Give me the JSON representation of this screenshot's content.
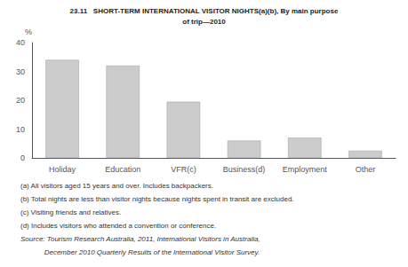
{
  "chart_data": {
    "type": "bar",
    "title": "23.11   SHORT-TERM INTERNATIONAL VISITOR NIGHTS(a)(b), By main purpose",
    "subtitle": "of trip—2010",
    "ylabel": "%",
    "categories": [
      "Holiday",
      "Education",
      "VFR(c)",
      "Business(d)",
      "Employment",
      "Other"
    ],
    "values": [
      34.0,
      32.0,
      19.5,
      6.0,
      7.0,
      2.5
    ],
    "color": "#cccccc",
    "ylim": [
      0,
      40
    ],
    "yticks": [
      0,
      10,
      20,
      30,
      40
    ],
    "grid": false,
    "annotations": [
      "(a) All visitors aged 15 years and over. Includes backpackers.",
      "(b) Total nights are less than visitor nights because nights spent in transit are excluded.",
      "(c) Visiting friends and relatives.",
      "(d) Includes visitors who attended a convention or conference.",
      "Source: Tourism Research Australia, 2011, International Visitors in Australia,",
      "            December 2010 Quarterly Results of the International Visitor Survey."
    ]
  }
}
